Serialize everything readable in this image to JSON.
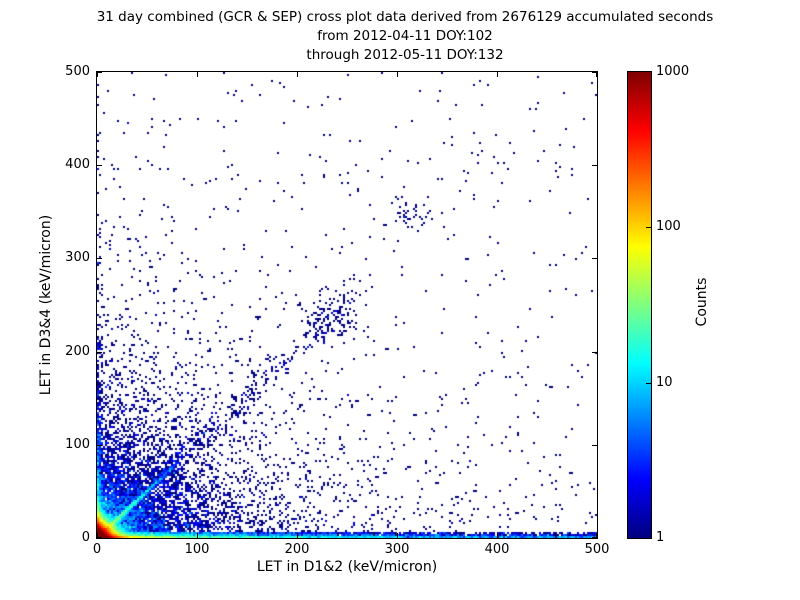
{
  "title": {
    "line1": "31 day combined (GCR & SEP) cross plot data derived from 2676129 accumulated seconds",
    "line2": "from 2012-04-11 DOY:102",
    "line3": "through 2012-05-11 DOY:132"
  },
  "chart_data": {
    "type": "heatmap",
    "subtype": "2d-histogram-cross-plot",
    "title": "31 day combined (GCR & SEP) cross plot data derived from 2676129 accumulated seconds",
    "xlabel": "LET in D1&2 (keV/micron)",
    "ylabel": "LET in D3&4 (keV/micron)",
    "xlim": [
      0,
      500
    ],
    "ylim": [
      0,
      500
    ],
    "x_ticks": [
      "0",
      "100",
      "200",
      "300",
      "400",
      "500"
    ],
    "y_ticks": [
      "500",
      "400",
      "300",
      "200",
      "100",
      "0"
    ],
    "grid": false,
    "bin_size_px": 2,
    "seed": 7,
    "colorbar": {
      "label": "Counts",
      "scale": "log",
      "min": 1,
      "max": 1000,
      "ticks": [
        "1000",
        "100",
        "10",
        "1"
      ],
      "colormap": "jet",
      "color_low": "#000080",
      "color_mid": "#00d4ff",
      "color_high": "#800000"
    },
    "density_components": [
      {
        "name": "origin-hotspot",
        "type": "exp",
        "n": 55000,
        "sx": 4.5,
        "sy": 4.5
      },
      {
        "name": "origin-cloud",
        "type": "exp",
        "n": 3000,
        "sx": 32,
        "sy": 28
      },
      {
        "name": "near-field",
        "type": "exp",
        "n": 2600,
        "sx": 62,
        "sy": 55
      },
      {
        "name": "mid-field",
        "type": "exp",
        "n": 1400,
        "sx": 135,
        "sy": 95
      },
      {
        "name": "diagonal-bright",
        "type": "ray",
        "n": 1800,
        "angle": 45,
        "decay": 40,
        "max": 115,
        "spread": 1.2
      },
      {
        "name": "diagonal-diffuse",
        "type": "ray",
        "n": 780,
        "angle": 45.5,
        "decay": 130,
        "max": 390,
        "spread": 7
      },
      {
        "name": "fan-ray-1",
        "type": "ray",
        "n": 140,
        "angle": 33,
        "decay": 48,
        "max": 160,
        "spread": 2.2
      },
      {
        "name": "fan-ray-2",
        "type": "ray",
        "n": 140,
        "angle": 57,
        "decay": 48,
        "max": 160,
        "spread": 2.2
      },
      {
        "name": "fan-ray-3",
        "type": "ray",
        "n": 110,
        "angle": 22,
        "decay": 55,
        "max": 170,
        "spread": 2.5
      },
      {
        "name": "fan-ray-4",
        "type": "ray",
        "n": 120,
        "angle": 72,
        "decay": 60,
        "max": 200,
        "spread": 3
      },
      {
        "name": "x-axis-ridge",
        "type": "bandx",
        "n": 2800,
        "dx": 18,
        "h": 2.5
      },
      {
        "name": "x-axis-band",
        "type": "bandx",
        "n": 4200,
        "dx": 150,
        "h": 6
      },
      {
        "name": "x-axis-band-far",
        "type": "bandx",
        "n": 1800,
        "dx": 0,
        "h": 5
      },
      {
        "name": "y-axis-ridge",
        "type": "bandy",
        "n": 700,
        "dy": 10,
        "w": 2.5
      },
      {
        "name": "y-axis-band",
        "type": "bandy",
        "n": 800,
        "dy": 60,
        "w": 5
      },
      {
        "name": "y-axis-band-high",
        "type": "bandy",
        "n": 60,
        "dy": 300,
        "w": 4
      },
      {
        "name": "cluster-230-230",
        "type": "gauss",
        "n": 110,
        "cx": 235,
        "cy": 233,
        "s": 13
      },
      {
        "name": "cluster-315-350",
        "type": "gauss",
        "n": 40,
        "cx": 315,
        "cy": 350,
        "s": 10
      },
      {
        "name": "background",
        "type": "uni",
        "n": 430
      }
    ]
  }
}
